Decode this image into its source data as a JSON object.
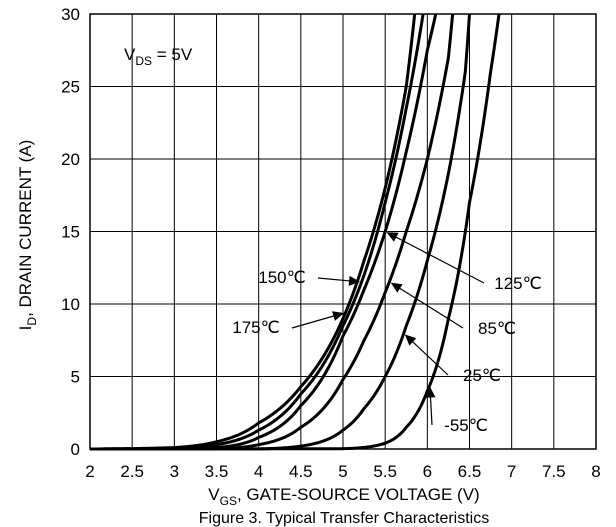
{
  "chart_data": {
    "type": "line",
    "title": "",
    "xlabel": {
      "main": "V",
      "sub": "GS",
      "rest": ", GATE-SOURCE VOLTAGE (V)"
    },
    "ylabel": {
      "main": "I",
      "sub": "D",
      "rest": ", DRAIN CURRENT (A)"
    },
    "xlim": [
      2,
      8
    ],
    "ylim": [
      0,
      30
    ],
    "x_ticks": [
      2,
      2.5,
      3,
      3.5,
      4,
      4.5,
      5,
      5.5,
      6,
      6.5,
      7,
      7.5,
      8
    ],
    "x_tick_labels": [
      "2",
      "2.5",
      "3",
      "3.5",
      "4",
      "4.5",
      "5",
      "5.5",
      "6",
      "6.5",
      "7",
      "7.5",
      "8"
    ],
    "y_ticks": [
      0,
      5,
      10,
      15,
      20,
      25,
      30
    ],
    "y_tick_labels": [
      "0",
      "5",
      "10",
      "15",
      "20",
      "25",
      "30"
    ],
    "grid": true,
    "condition": {
      "main": "V",
      "sub": "DS",
      "rest": " = 5V"
    },
    "caption": "Figure 3. Typical Transfer Characteristics",
    "series": [
      {
        "name": "175℃",
        "x": [
          2.0,
          3.0,
          3.5,
          4.0,
          4.5,
          5.0,
          5.25,
          5.5,
          5.75,
          5.85
        ],
        "y": [
          0.0,
          0.1,
          0.5,
          1.8,
          4.3,
          9.0,
          13.0,
          18.0,
          25.0,
          30.0
        ]
      },
      {
        "name": "150℃",
        "x": [
          2.0,
          3.0,
          3.5,
          4.0,
          4.5,
          5.0,
          5.25,
          5.5,
          5.75,
          5.95
        ],
        "y": [
          0.0,
          0.05,
          0.3,
          1.3,
          3.8,
          8.5,
          12.0,
          17.0,
          23.5,
          30.0
        ]
      },
      {
        "name": "125℃",
        "x": [
          2.0,
          3.5,
          4.0,
          4.5,
          5.0,
          5.25,
          5.5,
          5.75,
          6.0,
          6.1
        ],
        "y": [
          0.0,
          0.1,
          0.8,
          3.0,
          7.8,
          11.0,
          15.0,
          20.5,
          27.5,
          30.0
        ]
      },
      {
        "name": "85℃",
        "x": [
          2.0,
          3.5,
          4.0,
          4.5,
          5.0,
          5.25,
          5.5,
          5.75,
          6.0,
          6.25,
          6.3
        ],
        "y": [
          0.0,
          0.02,
          0.3,
          1.5,
          4.8,
          7.5,
          10.8,
          15.0,
          20.0,
          27.0,
          30.0
        ]
      },
      {
        "name": "25℃",
        "x": [
          2.0,
          4.0,
          4.5,
          5.0,
          5.25,
          5.5,
          5.75,
          6.0,
          6.25,
          6.45,
          6.5
        ],
        "y": [
          0.0,
          0.01,
          0.2,
          1.3,
          2.8,
          5.0,
          8.5,
          13.0,
          19.0,
          26.0,
          30.0
        ]
      },
      {
        "name": "-55℃",
        "x": [
          2.0,
          5.0,
          5.5,
          5.75,
          6.0,
          6.25,
          6.5,
          6.75,
          6.85
        ],
        "y": [
          0.0,
          0.02,
          0.4,
          1.5,
          4.0,
          9.0,
          17.0,
          26.0,
          30.0
        ]
      }
    ],
    "annotations": [
      {
        "label": "150℃",
        "target_series": "150℃",
        "at_x": 5.22,
        "side": "left"
      },
      {
        "label": "175℃",
        "target_series": "175℃",
        "at_x": 5.03,
        "side": "left"
      },
      {
        "label": "125℃",
        "target_series": "125℃",
        "at_x": 5.5,
        "side": "right"
      },
      {
        "label": "85℃",
        "target_series": "85℃",
        "at_x": 5.55,
        "side": "right"
      },
      {
        "label": "25℃",
        "target_series": "25℃",
        "at_x": 5.72,
        "side": "right"
      },
      {
        "label": "-55℃",
        "target_series": "-55℃",
        "at_x": 6.03,
        "side": "right"
      }
    ]
  }
}
